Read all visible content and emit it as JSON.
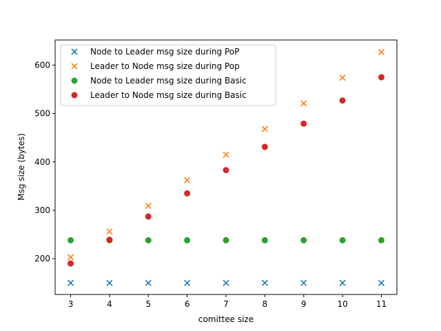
{
  "chart_data": {
    "type": "scatter",
    "xlabel": "comittee size",
    "ylabel": "Msg size (bytes)",
    "xlim": [
      2.6,
      11.4
    ],
    "ylim": [
      126,
      652
    ],
    "xticks": [
      3,
      4,
      5,
      6,
      7,
      8,
      9,
      10,
      11
    ],
    "yticks": [
      200,
      300,
      400,
      500,
      600
    ],
    "grid": false,
    "legend_position": "top-left",
    "x": [
      3,
      4,
      5,
      6,
      7,
      8,
      9,
      10,
      11
    ],
    "series": [
      {
        "name": "Node to Leader msg size during PoP",
        "marker": "x",
        "color": "#1f77b4",
        "values": [
          150,
          150,
          150,
          150,
          150,
          150,
          150,
          150,
          150
        ]
      },
      {
        "name": "Leader to Node msg size during Pop",
        "marker": "x",
        "color": "#ff7f0e",
        "values": [
          203,
          256,
          309,
          362,
          415,
          468,
          521,
          574,
          627
        ]
      },
      {
        "name": "Node to Leader msg size during Basic",
        "marker": "circle",
        "color": "#2ca02c",
        "values": [
          238,
          238,
          238,
          238,
          238,
          238,
          238,
          238,
          238
        ]
      },
      {
        "name": "Leader to Node msg size during Basic",
        "marker": "circle",
        "color": "#d62728",
        "values": [
          190,
          239,
          287,
          335,
          383,
          431,
          479,
          527,
          575
        ]
      }
    ]
  }
}
